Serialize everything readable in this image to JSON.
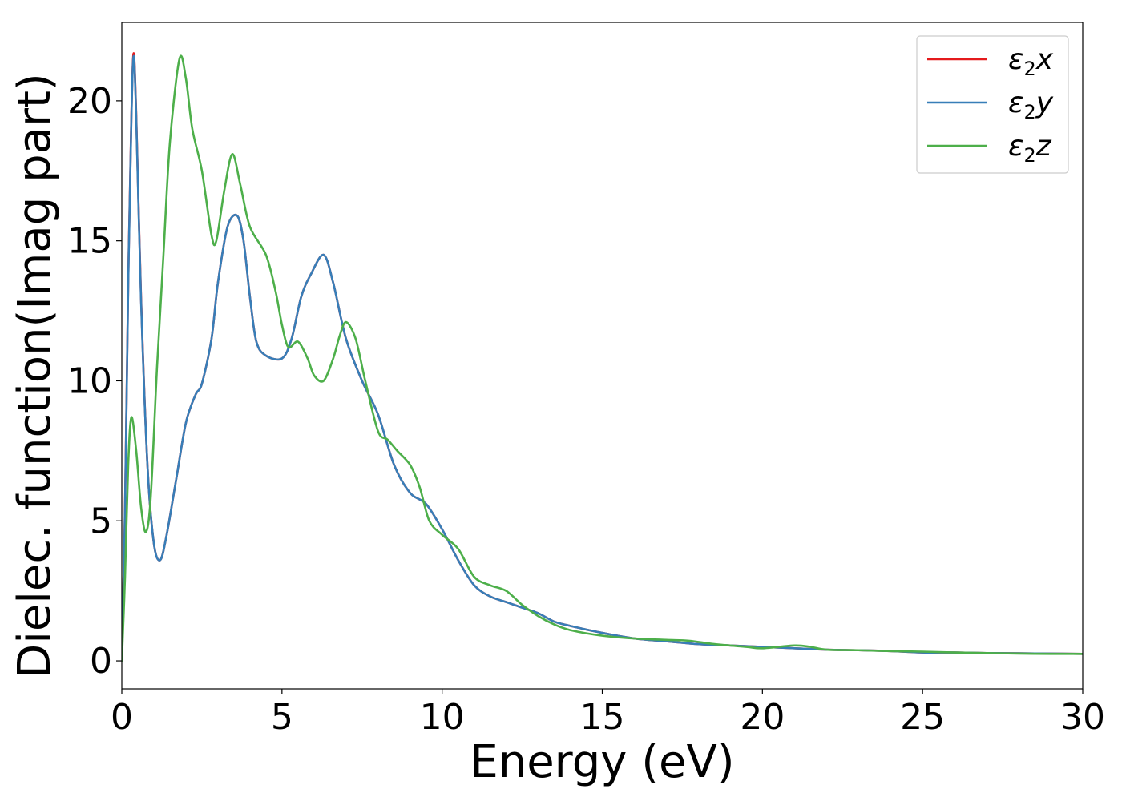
{
  "chart_data": {
    "type": "line",
    "title": "",
    "xlabel": "Energy (eV)",
    "ylabel": "Dielec. function(Imag part)",
    "xlim": [
      0,
      30
    ],
    "ylim": [
      -1.0,
      22.8
    ],
    "xticks": [
      0,
      5,
      10,
      15,
      20,
      25,
      30
    ],
    "yticks": [
      0,
      5,
      10,
      15,
      20
    ],
    "grid": false,
    "legend_position": "top-right",
    "series": [
      {
        "name": "ε2x",
        "legend_base": "ε",
        "legend_sub": "2",
        "legend_suffix": "x",
        "color": "#e41a1c",
        "x": [
          0,
          0.1,
          0.2,
          0.3,
          0.37,
          0.45,
          0.6,
          0.8,
          1.0,
          1.2,
          1.4,
          1.7,
          2.0,
          2.3,
          2.5,
          2.8,
          3.0,
          3.3,
          3.6,
          3.8,
          4.0,
          4.2,
          4.5,
          5.0,
          5.3,
          5.6,
          5.9,
          6.3,
          6.6,
          7.0,
          7.5,
          8.0,
          8.5,
          9.0,
          9.5,
          10.0,
          10.5,
          11.0,
          11.5,
          12.0,
          12.5,
          13.0,
          13.5,
          14.0,
          15.0,
          16.0,
          17.0,
          18.0,
          19.0,
          20.0,
          21.0,
          22.0,
          23.0,
          24.0,
          25.0,
          26.0,
          27.0,
          28.0,
          29.0,
          30.0
        ],
        "values": [
          0,
          5.5,
          13.5,
          19.5,
          21.7,
          19.5,
          13.0,
          7.0,
          4.2,
          3.6,
          4.5,
          6.5,
          8.5,
          9.5,
          9.9,
          11.5,
          13.5,
          15.5,
          15.9,
          15.0,
          13.0,
          11.4,
          10.9,
          10.8,
          11.5,
          13.0,
          13.8,
          14.5,
          13.5,
          11.5,
          10.0,
          8.8,
          7.0,
          6.0,
          5.6,
          4.7,
          3.6,
          2.7,
          2.3,
          2.1,
          1.9,
          1.7,
          1.4,
          1.25,
          1.0,
          0.8,
          0.7,
          0.6,
          0.55,
          0.5,
          0.45,
          0.4,
          0.38,
          0.35,
          0.3,
          0.3,
          0.28,
          0.27,
          0.26,
          0.25
        ]
      },
      {
        "name": "ε2y",
        "legend_base": "ε",
        "legend_sub": "2",
        "legend_suffix": "y",
        "color": "#377eb8",
        "x": [
          0,
          0.1,
          0.2,
          0.3,
          0.37,
          0.45,
          0.6,
          0.8,
          1.0,
          1.2,
          1.4,
          1.7,
          2.0,
          2.3,
          2.5,
          2.8,
          3.0,
          3.3,
          3.6,
          3.8,
          4.0,
          4.2,
          4.5,
          5.0,
          5.3,
          5.6,
          5.9,
          6.3,
          6.6,
          7.0,
          7.5,
          8.0,
          8.5,
          9.0,
          9.5,
          10.0,
          10.5,
          11.0,
          11.5,
          12.0,
          12.5,
          13.0,
          13.5,
          14.0,
          15.0,
          16.0,
          17.0,
          18.0,
          19.0,
          20.0,
          21.0,
          22.0,
          23.0,
          24.0,
          25.0,
          26.0,
          27.0,
          28.0,
          29.0,
          30.0
        ],
        "values": [
          0,
          5.4,
          13.4,
          19.4,
          21.6,
          19.4,
          12.9,
          7.0,
          4.2,
          3.6,
          4.5,
          6.5,
          8.5,
          9.5,
          9.9,
          11.5,
          13.5,
          15.5,
          15.9,
          15.0,
          13.0,
          11.4,
          10.9,
          10.8,
          11.5,
          13.0,
          13.8,
          14.5,
          13.5,
          11.5,
          10.0,
          8.8,
          7.0,
          6.0,
          5.6,
          4.7,
          3.6,
          2.7,
          2.3,
          2.1,
          1.9,
          1.7,
          1.4,
          1.25,
          1.0,
          0.8,
          0.7,
          0.6,
          0.55,
          0.5,
          0.45,
          0.4,
          0.38,
          0.35,
          0.3,
          0.3,
          0.28,
          0.27,
          0.26,
          0.25
        ]
      },
      {
        "name": "ε2z",
        "legend_base": "ε",
        "legend_sub": "2",
        "legend_suffix": "z",
        "color": "#4daf4a",
        "x": [
          0,
          0.1,
          0.2,
          0.3,
          0.45,
          0.6,
          0.75,
          0.9,
          1.1,
          1.3,
          1.5,
          1.8,
          2.0,
          2.2,
          2.5,
          2.8,
          2.95,
          3.2,
          3.45,
          3.7,
          4.0,
          4.5,
          4.8,
          5.0,
          5.2,
          5.5,
          5.8,
          6.0,
          6.3,
          6.6,
          6.8,
          7.0,
          7.3,
          7.6,
          8.0,
          8.3,
          8.6,
          9.0,
          9.3,
          9.6,
          10.0,
          10.5,
          11.0,
          11.5,
          12.0,
          12.5,
          13.0,
          13.5,
          14.0,
          15.0,
          16.0,
          17.0,
          17.7,
          18.5,
          19.5,
          20.0,
          21.0,
          21.5,
          22.0,
          23.0,
          24.0,
          25.0,
          26.0,
          27.0,
          28.0,
          29.0,
          30.0
        ],
        "values": [
          0,
          3.0,
          7.0,
          8.7,
          7.5,
          5.5,
          4.6,
          5.8,
          10.5,
          14.5,
          18.5,
          21.5,
          20.8,
          19.0,
          17.5,
          15.2,
          15.0,
          16.8,
          18.1,
          17.0,
          15.5,
          14.5,
          13.2,
          12.0,
          11.2,
          11.4,
          10.8,
          10.2,
          10.0,
          10.8,
          11.6,
          12.1,
          11.5,
          10.0,
          8.2,
          7.9,
          7.5,
          7.0,
          6.2,
          5.0,
          4.5,
          4.0,
          3.0,
          2.7,
          2.5,
          2.0,
          1.6,
          1.3,
          1.1,
          0.9,
          0.8,
          0.75,
          0.72,
          0.6,
          0.5,
          0.45,
          0.55,
          0.5,
          0.4,
          0.38,
          0.35,
          0.33,
          0.3,
          0.28,
          0.26,
          0.25,
          0.25
        ]
      }
    ]
  }
}
